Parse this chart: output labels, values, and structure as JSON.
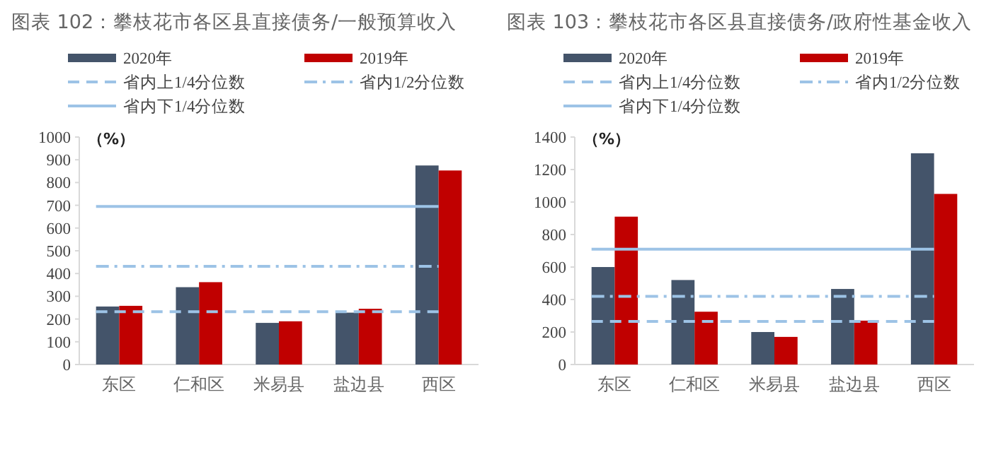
{
  "chart_data": [
    {
      "type": "bar",
      "title": "图表 102：攀枝花市各区县直接债务/一般预算收入",
      "ylabel": "（%）",
      "categories": [
        "东区",
        "仁和区",
        "米易县",
        "盐边县",
        "西区"
      ],
      "series": [
        {
          "name": "2020年",
          "color": "#44546a",
          "values": [
            255,
            340,
            183,
            228,
            875
          ]
        },
        {
          "name": "2019年",
          "color": "#c00000",
          "values": [
            258,
            362,
            190,
            245,
            853
          ]
        }
      ],
      "ref_lines": [
        {
          "axis": "y",
          "value": 232,
          "label": "省内上1/4分位数",
          "color": "#9dc3e6",
          "line_style": "dashed"
        },
        {
          "axis": "y",
          "value": 432,
          "label": "省内1/2分位数",
          "color": "#9dc3e6",
          "line_style": "dashdot"
        },
        {
          "axis": "y",
          "value": 695,
          "label": "省内下1/4分位数",
          "color": "#9dc3e6",
          "line_style": "solid"
        }
      ],
      "ylim": [
        0,
        1000
      ],
      "yticks": [
        0,
        100,
        200,
        300,
        400,
        500,
        600,
        700,
        800,
        900,
        1000
      ],
      "legend": "top",
      "grid": false
    },
    {
      "type": "bar",
      "title": "图表 103：攀枝花市各区县直接债务/政府性基金收入",
      "ylabel": "（%）",
      "categories": [
        "东区",
        "仁和区",
        "米易县",
        "盐边县",
        "西区"
      ],
      "series": [
        {
          "name": "2020年",
          "color": "#44546a",
          "values": [
            600,
            520,
            200,
            465,
            1300
          ]
        },
        {
          "name": "2019年",
          "color": "#c00000",
          "values": [
            910,
            325,
            170,
            270,
            1050
          ]
        }
      ],
      "ref_lines": [
        {
          "axis": "y",
          "value": 265,
          "label": "省内上1/4分位数",
          "color": "#9dc3e6",
          "line_style": "dashed"
        },
        {
          "axis": "y",
          "value": 420,
          "label": "省内1/2分位数",
          "color": "#9dc3e6",
          "line_style": "dashdot"
        },
        {
          "axis": "y",
          "value": 710,
          "label": "省内下1/4分位数",
          "color": "#9dc3e6",
          "line_style": "solid"
        }
      ],
      "ylim": [
        0,
        1400
      ],
      "yticks": [
        0,
        200,
        400,
        600,
        800,
        1000,
        1200,
        1400
      ],
      "legend": "top",
      "grid": false
    }
  ]
}
